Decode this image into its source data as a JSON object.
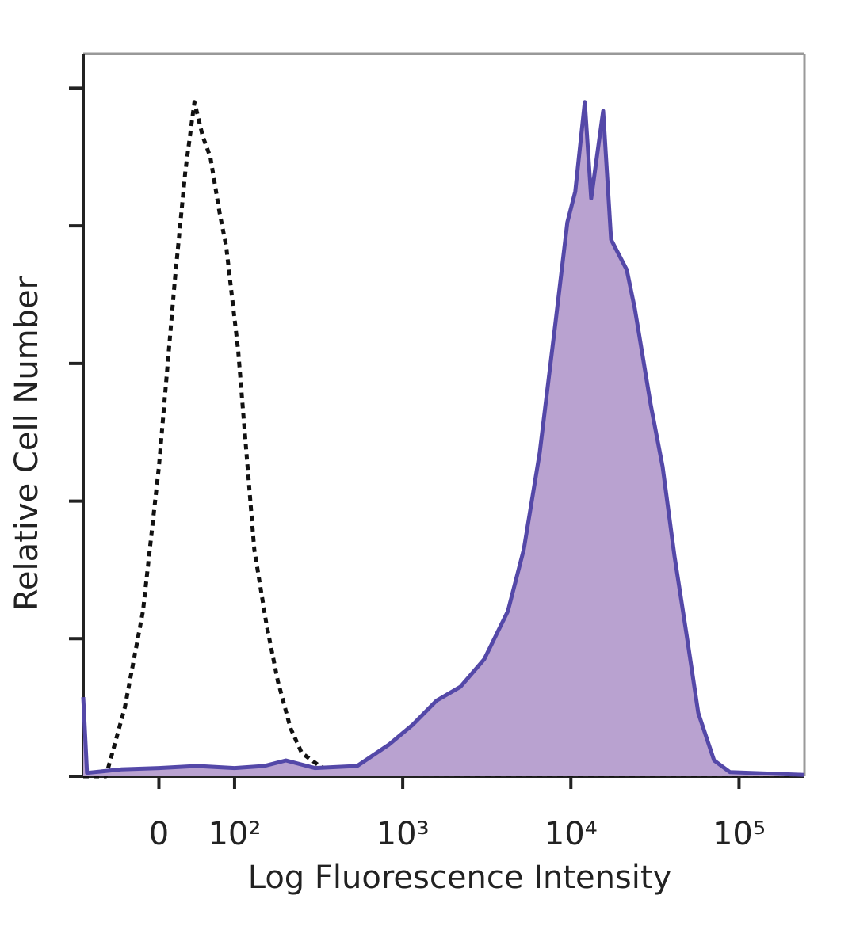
{
  "chart_data": {
    "type": "histogram-overlay",
    "x_label": "Log Fluorescence Intensity",
    "y_label": "Relative Cell Number",
    "xscale": "symlog",
    "linthresh": 100,
    "linscale": 0.45,
    "xlim": [
      -100,
      245000
    ],
    "xticks": [
      0,
      {
        "value": 100,
        "label": "10²"
      },
      {
        "value": 1000,
        "label": "10³"
      },
      {
        "value": 10000,
        "label": "10⁴"
      },
      {
        "value": 100000,
        "label": "10⁵"
      }
    ],
    "ylim": [
      0,
      105
    ],
    "yticks": [
      0,
      20,
      40,
      60,
      80,
      100
    ],
    "series": [
      {
        "color": "#111111",
        "dashed": true,
        "x": [
          -100,
          -70,
          -45,
          -21,
          0,
          21,
          35,
          47,
          58,
          68,
          80,
          89,
          105,
          131,
          155,
          181,
          215,
          251,
          320,
          387,
          923,
          2735,
          8100,
          24000,
          71000,
          210000,
          245000
        ],
        "values": [
          0,
          0,
          10,
          24,
          45,
          72,
          88,
          98,
          93,
          90,
          82,
          77,
          62,
          33,
          22,
          13.8,
          7,
          3.4,
          1.5,
          0.6,
          0.3,
          0.2,
          0.2,
          0.2,
          0.2,
          0.2,
          0.2
        ]
      },
      {
        "color": "#5448a8",
        "fill": "#b9a2d0",
        "x": [
          -100,
          -95,
          -50,
          0,
          50,
          100,
          150,
          202,
          300,
          536,
          828,
          1146,
          1589,
          2200,
          3050,
          4220,
          5250,
          6520,
          8100,
          9530,
          10620,
          12100,
          13200,
          14260,
          15560,
          17340,
          21500,
          24000,
          29850,
          35100,
          41300,
          48700,
          57200,
          71100,
          88300,
          245000
        ],
        "values": [
          11.5,
          0.5,
          1,
          1.2,
          1.5,
          1.2,
          1.5,
          2.3,
          1.2,
          1.5,
          4.6,
          7.5,
          11,
          13,
          17,
          24,
          33,
          47,
          66,
          80.5,
          85,
          98,
          84,
          90,
          96.7,
          78,
          73.6,
          68,
          54,
          45,
          32,
          20.7,
          9.2,
          2.3,
          0.6,
          0.2
        ]
      }
    ]
  }
}
